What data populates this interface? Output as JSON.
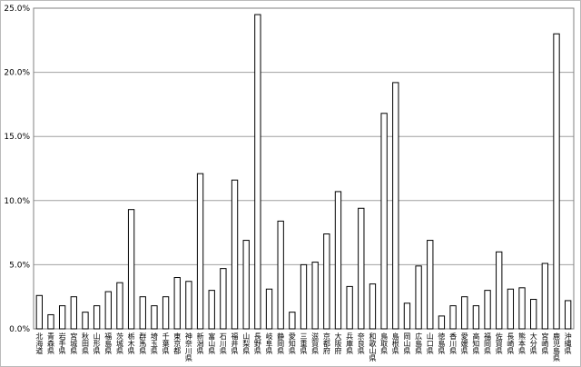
{
  "chart_data": {
    "type": "bar",
    "categories": [
      "北海道",
      "青森県",
      "岩手県",
      "宮城県",
      "秋田県",
      "山形県",
      "福島県",
      "茨城県",
      "栃木県",
      "群馬県",
      "埼玉県",
      "千葉県",
      "東京都",
      "神奈川県",
      "新潟県",
      "富山県",
      "石川県",
      "福井県",
      "山梨県",
      "長野県",
      "岐阜県",
      "静岡県",
      "愛知県",
      "三重県",
      "滋賀県",
      "京都府",
      "大阪府",
      "兵庫県",
      "奈良県",
      "和歌山県",
      "鳥取県",
      "島根県",
      "岡山県",
      "広島県",
      "山口県",
      "徳島県",
      "香川県",
      "愛媛県",
      "高知県",
      "福岡県",
      "佐賀県",
      "長崎県",
      "熊本県",
      "大分県",
      "宮崎県",
      "鹿児島県",
      "沖縄県"
    ],
    "values": [
      2.6,
      1.1,
      1.8,
      2.5,
      1.3,
      1.8,
      2.9,
      3.6,
      9.3,
      2.5,
      1.8,
      2.5,
      4.0,
      3.7,
      12.1,
      3.0,
      4.7,
      11.6,
      6.9,
      24.5,
      3.1,
      8.4,
      1.3,
      5.0,
      5.2,
      7.4,
      10.7,
      3.3,
      9.4,
      3.5,
      16.8,
      19.2,
      2.0,
      4.9,
      6.9,
      1.0,
      1.8,
      2.5,
      1.8,
      3.0,
      6.0,
      3.1,
      3.2,
      2.3,
      5.1,
      23.0,
      2.2
    ],
    "color": "#ffffff",
    "ylim": [
      0,
      25
    ],
    "yticks": [
      {
        "value": 0,
        "label": "0.0%"
      },
      {
        "value": 5,
        "label": "5.0%"
      },
      {
        "value": 10,
        "label": "10.0%"
      },
      {
        "value": 15,
        "label": "15.0%"
      },
      {
        "value": 20,
        "label": "20.0%"
      },
      {
        "value": 25,
        "label": "25.0%"
      }
    ],
    "grid": true
  }
}
